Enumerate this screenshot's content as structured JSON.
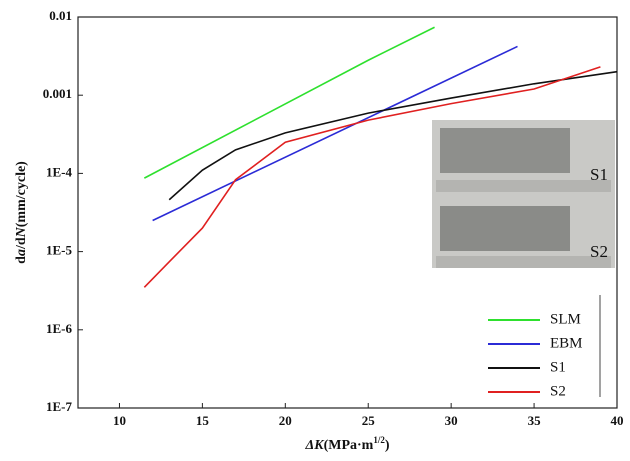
{
  "chart_data": {
    "type": "line",
    "xlabel": [
      "ΔK",
      "(MPa·m",
      "1/2",
      ")"
    ],
    "ylabel": [
      "d",
      "a",
      "/d",
      "N",
      "(mm/cycle)"
    ],
    "xlim": [
      7.5,
      40
    ],
    "ylim": [
      1e-07,
      0.01
    ],
    "log_y": true,
    "xticks": [
      10,
      15,
      20,
      25,
      30,
      35,
      40
    ],
    "yticks": [
      {
        "value": 1e-07,
        "label": "1E-7"
      },
      {
        "value": 1e-06,
        "label": "1E-6"
      },
      {
        "value": 1e-05,
        "label": "1E-5"
      },
      {
        "value": 0.0001,
        "label": "1E-4"
      },
      0.001,
      0.01
    ],
    "legend": "lower right",
    "series": [
      {
        "name": "SLM",
        "color": "#2ee02e",
        "x": [
          11.5,
          25,
          29
        ],
        "values": [
          8.7e-05,
          0.0028,
          0.0074
        ]
      },
      {
        "name": "EBM",
        "color": "#2b2bd6",
        "x": [
          12,
          34
        ],
        "values": [
          2.5e-05,
          0.0042
        ]
      },
      {
        "name": "S1",
        "color": "#111111",
        "x": [
          13,
          15,
          17,
          20,
          25,
          30,
          35,
          40
        ],
        "values": [
          4.6e-05,
          0.00011,
          0.0002,
          0.00033,
          0.00059,
          0.00092,
          0.0014,
          0.002
        ]
      },
      {
        "name": "S2",
        "color": "#e02020",
        "x": [
          11.5,
          13,
          15,
          17,
          20,
          25,
          30,
          35,
          39
        ],
        "values": [
          3.5e-06,
          7.4e-06,
          2e-05,
          8.3e-05,
          0.00025,
          0.00048,
          0.00078,
          0.0012,
          0.0023
        ]
      }
    ],
    "inset_labels": [
      "S1",
      "S2"
    ]
  }
}
